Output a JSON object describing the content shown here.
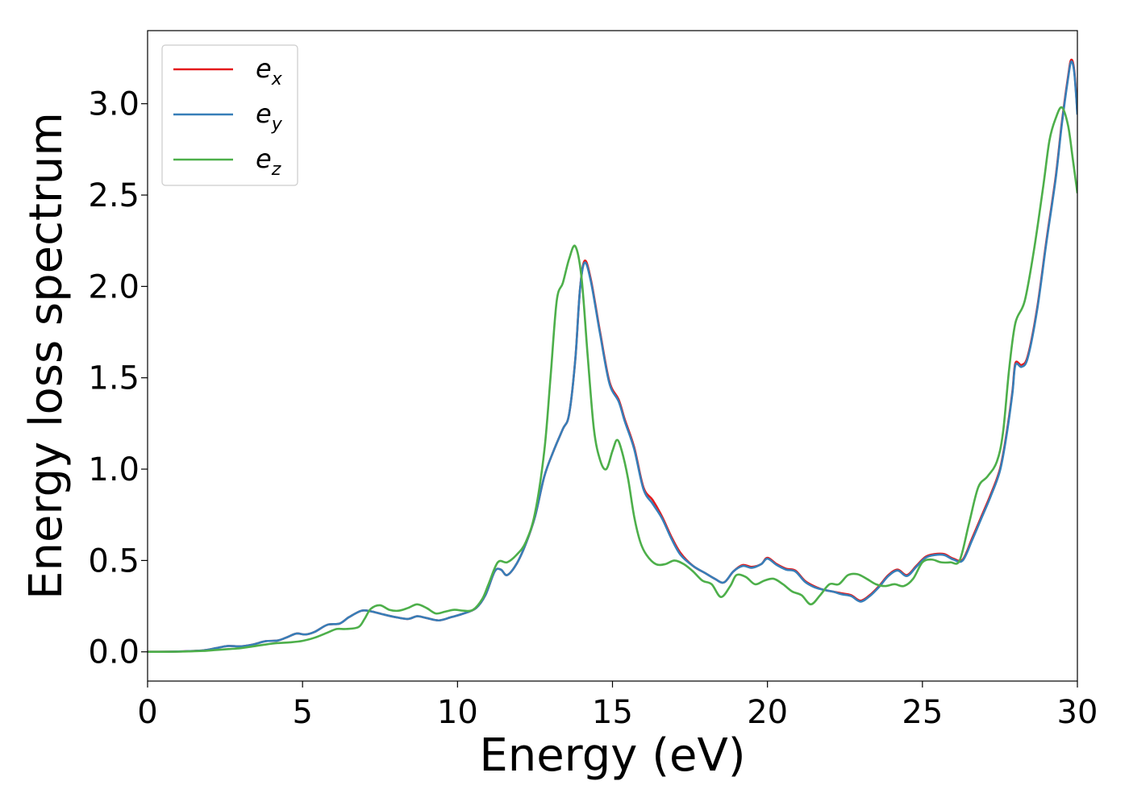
{
  "chart_data": {
    "type": "line",
    "xlabel": "Energy (eV)",
    "ylabel": "Energy loss spectrum",
    "xlim": [
      0,
      30
    ],
    "ylim": [
      -0.16,
      3.4
    ],
    "xticks": [
      0,
      5,
      10,
      15,
      20,
      25,
      30
    ],
    "xtick_labels": [
      "0",
      "5",
      "10",
      "15",
      "20",
      "25",
      "30"
    ],
    "yticks": [
      0.0,
      0.5,
      1.0,
      1.5,
      2.0,
      2.5,
      3.0
    ],
    "ytick_labels": [
      "0.0",
      "0.5",
      "1.0",
      "1.5",
      "2.0",
      "2.5",
      "3.0"
    ],
    "grid": false,
    "legend_position": "top-left",
    "series": [
      {
        "name": "e_x",
        "label_base": "e",
        "label_sub": "x",
        "color": "#e41a1c",
        "points": [
          [
            0,
            0
          ],
          [
            1,
            0.002
          ],
          [
            1.8,
            0.008
          ],
          [
            2.2,
            0.02
          ],
          [
            2.6,
            0.032
          ],
          [
            3.0,
            0.03
          ],
          [
            3.4,
            0.04
          ],
          [
            3.8,
            0.058
          ],
          [
            4.2,
            0.062
          ],
          [
            4.5,
            0.08
          ],
          [
            4.8,
            0.1
          ],
          [
            5.1,
            0.095
          ],
          [
            5.4,
            0.11
          ],
          [
            5.8,
            0.148
          ],
          [
            6.2,
            0.155
          ],
          [
            6.5,
            0.19
          ],
          [
            6.9,
            0.225
          ],
          [
            7.2,
            0.222
          ],
          [
            7.6,
            0.205
          ],
          [
            8.0,
            0.19
          ],
          [
            8.4,
            0.18
          ],
          [
            8.7,
            0.195
          ],
          [
            9.0,
            0.185
          ],
          [
            9.4,
            0.172
          ],
          [
            9.8,
            0.19
          ],
          [
            10.2,
            0.21
          ],
          [
            10.6,
            0.24
          ],
          [
            10.9,
            0.31
          ],
          [
            11.2,
            0.44
          ],
          [
            11.4,
            0.45
          ],
          [
            11.6,
            0.42
          ],
          [
            11.9,
            0.48
          ],
          [
            12.2,
            0.59
          ],
          [
            12.5,
            0.74
          ],
          [
            12.8,
            0.96
          ],
          [
            13.1,
            1.1
          ],
          [
            13.4,
            1.22
          ],
          [
            13.6,
            1.3
          ],
          [
            13.8,
            1.6
          ],
          [
            13.95,
            1.98
          ],
          [
            14.1,
            2.14
          ],
          [
            14.3,
            2.04
          ],
          [
            14.6,
            1.75
          ],
          [
            14.9,
            1.48
          ],
          [
            15.2,
            1.38
          ],
          [
            15.4,
            1.27
          ],
          [
            15.7,
            1.12
          ],
          [
            16.0,
            0.9
          ],
          [
            16.3,
            0.83
          ],
          [
            16.6,
            0.74
          ],
          [
            16.9,
            0.63
          ],
          [
            17.2,
            0.54
          ],
          [
            17.6,
            0.47
          ],
          [
            18.0,
            0.43
          ],
          [
            18.3,
            0.4
          ],
          [
            18.6,
            0.38
          ],
          [
            18.9,
            0.44
          ],
          [
            19.2,
            0.475
          ],
          [
            19.5,
            0.465
          ],
          [
            19.8,
            0.48
          ],
          [
            20.0,
            0.515
          ],
          [
            20.3,
            0.48
          ],
          [
            20.6,
            0.455
          ],
          [
            20.9,
            0.445
          ],
          [
            21.2,
            0.39
          ],
          [
            21.5,
            0.36
          ],
          [
            21.8,
            0.34
          ],
          [
            22.1,
            0.33
          ],
          [
            22.4,
            0.32
          ],
          [
            22.7,
            0.31
          ],
          [
            23.0,
            0.28
          ],
          [
            23.3,
            0.31
          ],
          [
            23.6,
            0.36
          ],
          [
            23.9,
            0.42
          ],
          [
            24.2,
            0.45
          ],
          [
            24.5,
            0.42
          ],
          [
            24.8,
            0.47
          ],
          [
            25.1,
            0.52
          ],
          [
            25.4,
            0.535
          ],
          [
            25.7,
            0.535
          ],
          [
            26.0,
            0.51
          ],
          [
            26.3,
            0.505
          ],
          [
            26.6,
            0.62
          ],
          [
            26.9,
            0.74
          ],
          [
            27.2,
            0.86
          ],
          [
            27.5,
            1.0
          ],
          [
            27.7,
            1.18
          ],
          [
            27.9,
            1.42
          ],
          [
            28.0,
            1.58
          ],
          [
            28.2,
            1.57
          ],
          [
            28.4,
            1.62
          ],
          [
            28.7,
            1.88
          ],
          [
            29.0,
            2.25
          ],
          [
            29.3,
            2.6
          ],
          [
            29.5,
            2.9
          ],
          [
            29.7,
            3.15
          ],
          [
            29.8,
            3.24
          ],
          [
            29.9,
            3.18
          ],
          [
            30.0,
            2.95
          ]
        ]
      },
      {
        "name": "e_y",
        "label_base": "e",
        "label_sub": "y",
        "color": "#377eb8",
        "points": [
          [
            0,
            0
          ],
          [
            1,
            0.002
          ],
          [
            1.8,
            0.008
          ],
          [
            2.2,
            0.02
          ],
          [
            2.6,
            0.032
          ],
          [
            3.0,
            0.03
          ],
          [
            3.4,
            0.04
          ],
          [
            3.8,
            0.058
          ],
          [
            4.2,
            0.062
          ],
          [
            4.5,
            0.08
          ],
          [
            4.8,
            0.1
          ],
          [
            5.1,
            0.095
          ],
          [
            5.4,
            0.11
          ],
          [
            5.8,
            0.148
          ],
          [
            6.2,
            0.155
          ],
          [
            6.5,
            0.19
          ],
          [
            6.9,
            0.225
          ],
          [
            7.2,
            0.222
          ],
          [
            7.6,
            0.205
          ],
          [
            8.0,
            0.19
          ],
          [
            8.4,
            0.18
          ],
          [
            8.7,
            0.195
          ],
          [
            9.0,
            0.185
          ],
          [
            9.4,
            0.172
          ],
          [
            9.8,
            0.19
          ],
          [
            10.2,
            0.21
          ],
          [
            10.6,
            0.24
          ],
          [
            10.9,
            0.31
          ],
          [
            11.2,
            0.44
          ],
          [
            11.4,
            0.45
          ],
          [
            11.6,
            0.42
          ],
          [
            11.9,
            0.48
          ],
          [
            12.2,
            0.59
          ],
          [
            12.5,
            0.74
          ],
          [
            12.8,
            0.96
          ],
          [
            13.1,
            1.1
          ],
          [
            13.4,
            1.22
          ],
          [
            13.6,
            1.3
          ],
          [
            13.8,
            1.6
          ],
          [
            13.95,
            1.98
          ],
          [
            14.1,
            2.13
          ],
          [
            14.3,
            2.03
          ],
          [
            14.6,
            1.74
          ],
          [
            14.9,
            1.47
          ],
          [
            15.2,
            1.37
          ],
          [
            15.4,
            1.26
          ],
          [
            15.7,
            1.11
          ],
          [
            16.0,
            0.89
          ],
          [
            16.3,
            0.81
          ],
          [
            16.6,
            0.73
          ],
          [
            16.9,
            0.62
          ],
          [
            17.2,
            0.53
          ],
          [
            17.6,
            0.47
          ],
          [
            18.0,
            0.43
          ],
          [
            18.3,
            0.4
          ],
          [
            18.6,
            0.38
          ],
          [
            18.9,
            0.44
          ],
          [
            19.2,
            0.47
          ],
          [
            19.5,
            0.46
          ],
          [
            19.8,
            0.48
          ],
          [
            20.0,
            0.51
          ],
          [
            20.3,
            0.475
          ],
          [
            20.6,
            0.45
          ],
          [
            20.9,
            0.44
          ],
          [
            21.2,
            0.385
          ],
          [
            21.5,
            0.355
          ],
          [
            21.8,
            0.34
          ],
          [
            22.1,
            0.33
          ],
          [
            22.4,
            0.315
          ],
          [
            22.7,
            0.305
          ],
          [
            23.0,
            0.275
          ],
          [
            23.3,
            0.305
          ],
          [
            23.6,
            0.355
          ],
          [
            23.9,
            0.415
          ],
          [
            24.2,
            0.445
          ],
          [
            24.5,
            0.415
          ],
          [
            24.8,
            0.465
          ],
          [
            25.1,
            0.515
          ],
          [
            25.4,
            0.53
          ],
          [
            25.7,
            0.53
          ],
          [
            26.0,
            0.505
          ],
          [
            26.3,
            0.5
          ],
          [
            26.6,
            0.61
          ],
          [
            26.9,
            0.73
          ],
          [
            27.2,
            0.85
          ],
          [
            27.5,
            0.99
          ],
          [
            27.7,
            1.17
          ],
          [
            27.9,
            1.41
          ],
          [
            28.0,
            1.57
          ],
          [
            28.2,
            1.56
          ],
          [
            28.4,
            1.61
          ],
          [
            28.7,
            1.87
          ],
          [
            29.0,
            2.24
          ],
          [
            29.3,
            2.59
          ],
          [
            29.5,
            2.89
          ],
          [
            29.7,
            3.14
          ],
          [
            29.8,
            3.23
          ],
          [
            29.9,
            3.17
          ],
          [
            30.0,
            2.94
          ]
        ]
      },
      {
        "name": "e_z",
        "label_base": "e",
        "label_sub": "z",
        "color": "#4daf4a",
        "points": [
          [
            0,
            0
          ],
          [
            1,
            0.001
          ],
          [
            1.8,
            0.005
          ],
          [
            2.2,
            0.01
          ],
          [
            2.6,
            0.015
          ],
          [
            3.0,
            0.02
          ],
          [
            3.4,
            0.03
          ],
          [
            3.8,
            0.04
          ],
          [
            4.2,
            0.048
          ],
          [
            4.6,
            0.052
          ],
          [
            5.0,
            0.06
          ],
          [
            5.4,
            0.078
          ],
          [
            5.8,
            0.105
          ],
          [
            6.1,
            0.125
          ],
          [
            6.4,
            0.125
          ],
          [
            6.8,
            0.135
          ],
          [
            7.0,
            0.18
          ],
          [
            7.2,
            0.235
          ],
          [
            7.5,
            0.255
          ],
          [
            7.8,
            0.23
          ],
          [
            8.1,
            0.225
          ],
          [
            8.4,
            0.24
          ],
          [
            8.7,
            0.26
          ],
          [
            9.0,
            0.24
          ],
          [
            9.3,
            0.21
          ],
          [
            9.6,
            0.22
          ],
          [
            9.9,
            0.23
          ],
          [
            10.2,
            0.225
          ],
          [
            10.5,
            0.23
          ],
          [
            10.8,
            0.29
          ],
          [
            11.0,
            0.37
          ],
          [
            11.3,
            0.49
          ],
          [
            11.6,
            0.49
          ],
          [
            11.9,
            0.53
          ],
          [
            12.2,
            0.6
          ],
          [
            12.5,
            0.76
          ],
          [
            12.8,
            1.1
          ],
          [
            13.0,
            1.5
          ],
          [
            13.2,
            1.92
          ],
          [
            13.4,
            2.02
          ],
          [
            13.6,
            2.15
          ],
          [
            13.8,
            2.22
          ],
          [
            14.0,
            2.05
          ],
          [
            14.2,
            1.62
          ],
          [
            14.4,
            1.22
          ],
          [
            14.6,
            1.05
          ],
          [
            14.8,
            1.0
          ],
          [
            15.0,
            1.1
          ],
          [
            15.15,
            1.16
          ],
          [
            15.3,
            1.1
          ],
          [
            15.5,
            0.95
          ],
          [
            15.7,
            0.74
          ],
          [
            15.9,
            0.6
          ],
          [
            16.1,
            0.53
          ],
          [
            16.4,
            0.48
          ],
          [
            16.7,
            0.48
          ],
          [
            17.0,
            0.5
          ],
          [
            17.3,
            0.48
          ],
          [
            17.6,
            0.44
          ],
          [
            17.9,
            0.39
          ],
          [
            18.2,
            0.37
          ],
          [
            18.5,
            0.3
          ],
          [
            18.8,
            0.36
          ],
          [
            19.0,
            0.42
          ],
          [
            19.3,
            0.41
          ],
          [
            19.6,
            0.37
          ],
          [
            19.9,
            0.39
          ],
          [
            20.2,
            0.4
          ],
          [
            20.5,
            0.37
          ],
          [
            20.8,
            0.33
          ],
          [
            21.1,
            0.31
          ],
          [
            21.4,
            0.26
          ],
          [
            21.7,
            0.31
          ],
          [
            22.0,
            0.37
          ],
          [
            22.3,
            0.37
          ],
          [
            22.6,
            0.42
          ],
          [
            22.9,
            0.425
          ],
          [
            23.2,
            0.4
          ],
          [
            23.5,
            0.37
          ],
          [
            23.8,
            0.36
          ],
          [
            24.1,
            0.37
          ],
          [
            24.4,
            0.36
          ],
          [
            24.7,
            0.4
          ],
          [
            25.0,
            0.49
          ],
          [
            25.3,
            0.505
          ],
          [
            25.6,
            0.49
          ],
          [
            25.9,
            0.49
          ],
          [
            26.2,
            0.5
          ],
          [
            26.5,
            0.7
          ],
          [
            26.8,
            0.9
          ],
          [
            27.1,
            0.96
          ],
          [
            27.4,
            1.04
          ],
          [
            27.6,
            1.2
          ],
          [
            27.8,
            1.55
          ],
          [
            28.0,
            1.8
          ],
          [
            28.3,
            1.92
          ],
          [
            28.6,
            2.2
          ],
          [
            28.9,
            2.55
          ],
          [
            29.1,
            2.8
          ],
          [
            29.3,
            2.92
          ],
          [
            29.5,
            2.98
          ],
          [
            29.7,
            2.88
          ],
          [
            29.85,
            2.7
          ],
          [
            30.0,
            2.51
          ]
        ]
      }
    ]
  }
}
